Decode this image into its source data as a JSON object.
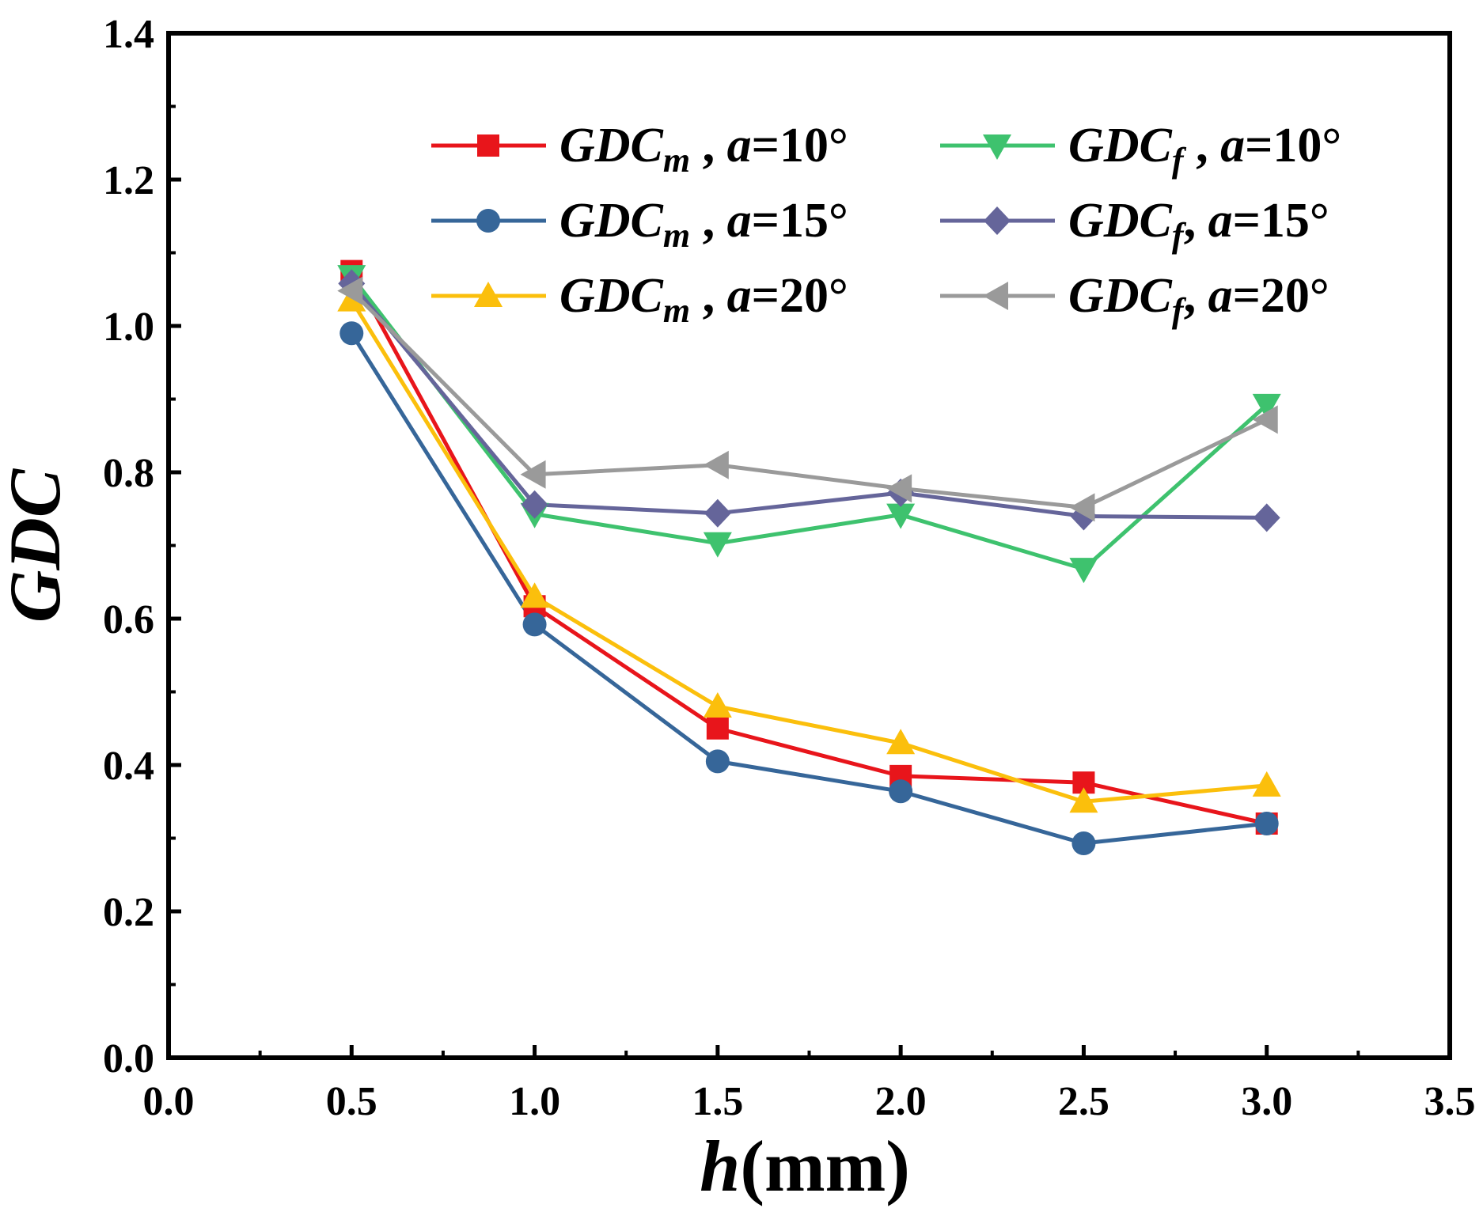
{
  "chart_data": {
    "type": "line",
    "xlabel_italic": "h",
    "xlabel_unit": "(mm)",
    "ylabel": "GDC",
    "xlim": [
      0.0,
      3.5
    ],
    "ylim": [
      0.0,
      1.4
    ],
    "xticks": [
      "0.0",
      "0.5",
      "1.0",
      "1.5",
      "2.0",
      "2.5",
      "3.0",
      "3.5"
    ],
    "yticks": [
      "0.0",
      "0.2",
      "0.4",
      "0.6",
      "0.8",
      "1.0",
      "1.2",
      "1.4"
    ],
    "grid": false,
    "legend_position": "top-right",
    "x": [
      0.5,
      1.0,
      1.5,
      2.0,
      2.5,
      3.0
    ],
    "series": [
      {
        "name": "GDCm , a=10°",
        "label_base": "GDC",
        "label_sub": "m",
        "label_sep": " , ",
        "label_var": "a",
        "label_eq": "=10°",
        "marker": "square",
        "color": "#e8151b",
        "values": [
          1.075,
          0.617,
          0.45,
          0.385,
          0.376,
          0.32
        ]
      },
      {
        "name": "GDCm , a=15°",
        "label_base": "GDC",
        "label_sub": "m",
        "label_sep": " , ",
        "label_var": "a",
        "label_eq": "=15°",
        "marker": "circle",
        "color": "#366699",
        "values": [
          0.99,
          0.592,
          0.405,
          0.364,
          0.293,
          0.32
        ]
      },
      {
        "name": "GDCm , a=20°",
        "label_base": "GDC",
        "label_sub": "m",
        "label_sep": " , ",
        "label_var": "a",
        "label_eq": "=20°",
        "marker": "triangle-up",
        "color": "#fbbf0c",
        "values": [
          1.035,
          0.63,
          0.48,
          0.43,
          0.35,
          0.372
        ]
      },
      {
        "name": "GDCf , a=10°",
        "label_base": "GDC",
        "label_sub": "f",
        "label_sep": " , ",
        "label_var": "a",
        "label_eq": "=10°",
        "marker": "triangle-down",
        "color": "#3ec26e",
        "values": [
          1.068,
          0.743,
          0.703,
          0.742,
          0.668,
          0.892
        ]
      },
      {
        "name": "GDCf, a=15°",
        "label_base": "GDC",
        "label_sub": "f",
        "label_sep": ", ",
        "label_var": "a",
        "label_eq": "=15°",
        "marker": "diamond",
        "color": "#65659a",
        "values": [
          1.058,
          0.756,
          0.744,
          0.772,
          0.74,
          0.738
        ]
      },
      {
        "name": "GDCf, a=20°",
        "label_base": "GDC",
        "label_sub": "f",
        "label_sep": ", ",
        "label_var": "a",
        "label_eq": "=20°",
        "marker": "triangle-left",
        "color": "#9a9a9a",
        "values": [
          1.048,
          0.797,
          0.81,
          0.778,
          0.752,
          0.872
        ]
      }
    ]
  }
}
